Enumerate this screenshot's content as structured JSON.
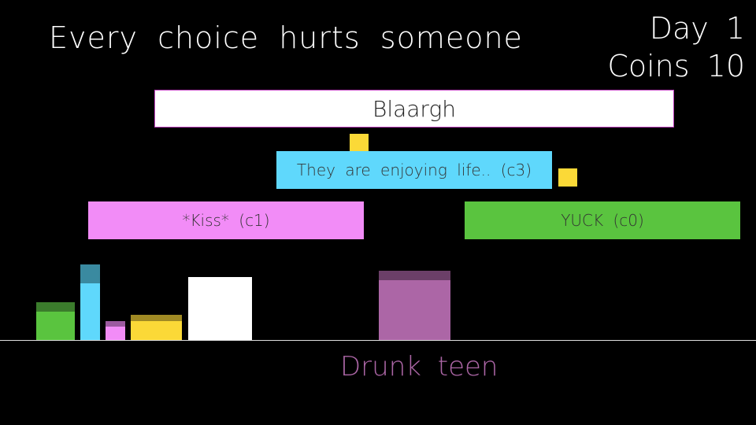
{
  "hud": {
    "title": "Every choice hurts someone",
    "day": "Day 1",
    "coins": "Coins 10"
  },
  "dialogue": {
    "prompt": "Blaargh",
    "choices": [
      {
        "label": "They are enjoying life.. (c3)",
        "color": "#5fd8fc"
      },
      {
        "label": "*Kiss* (c1)",
        "color": "#f28cf7"
      },
      {
        "label": "YUCK (c0)",
        "color": "#5ac43f"
      }
    ]
  },
  "coins_on_screen": [
    {
      "color": "#fbd937",
      "icon": "coin-icon"
    },
    {
      "color": "#fbd937",
      "icon": "coin-icon"
    }
  ],
  "bars": [
    {
      "color": "#5ac43f"
    },
    {
      "color": "#5fd8fc"
    },
    {
      "color": "#f28cf7"
    },
    {
      "color": "#fbd937"
    },
    {
      "color": "#ffffff"
    }
  ],
  "character": {
    "name": "Drunk teen",
    "color": "#ac66a6"
  }
}
